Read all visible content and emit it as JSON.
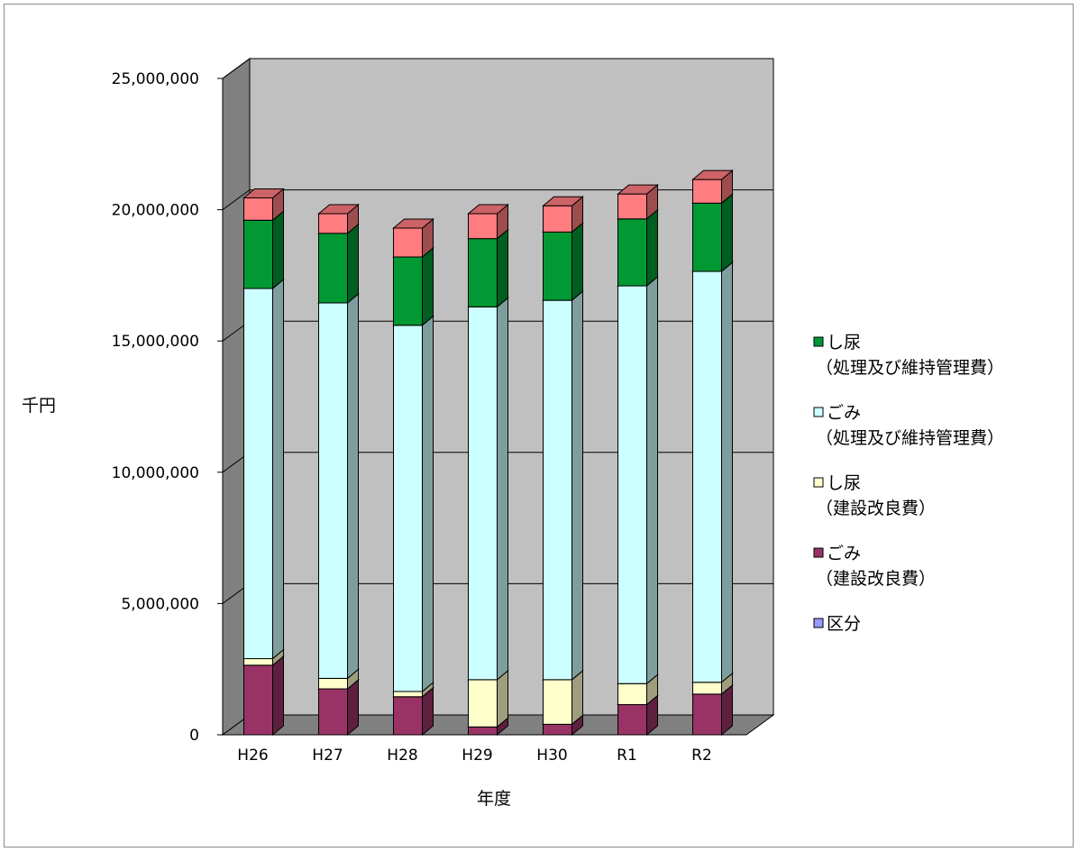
{
  "chart_data": {
    "type": "bar",
    "stacked": true,
    "three_d": true,
    "title": "",
    "xlabel": "年度",
    "ylabel": "千円",
    "ylim": [
      0,
      25000000
    ],
    "y_ticks": [
      0,
      5000000,
      10000000,
      15000000,
      20000000,
      25000000
    ],
    "y_tick_labels": [
      "0",
      "5,000,000",
      "10,000,000",
      "15,000,000",
      "20,000,000",
      "25,000,000"
    ],
    "grid": true,
    "legend_position": "right",
    "categories": [
      "H26",
      "H27",
      "H28",
      "H29",
      "H30",
      "R1",
      "R2"
    ],
    "series": [
      {
        "name": "区分",
        "color": "#9999ff",
        "values": [
          0,
          0,
          0,
          0,
          0,
          0,
          0
        ]
      },
      {
        "name": "ごみ\n（建設改良費）",
        "color": "#993366",
        "values": [
          2650000,
          1750000,
          1450000,
          300000,
          400000,
          1150000,
          1550000
        ]
      },
      {
        "name": "し尿\n（建設改良費）",
        "color": "#ffffcc",
        "values": [
          250000,
          400000,
          200000,
          1800000,
          1700000,
          800000,
          450000
        ]
      },
      {
        "name": "ごみ\n（処理及び維持管理費）",
        "color": "#ccffff",
        "values": [
          14100000,
          14300000,
          13950000,
          14200000,
          14450000,
          15150000,
          15650000
        ]
      },
      {
        "name": "し尿\n（処理及び維持管理費）",
        "color": "#009933",
        "values": [
          2600000,
          2650000,
          2600000,
          2600000,
          2600000,
          2550000,
          2600000
        ]
      },
      {
        "name": "",
        "color": "#ff7c80",
        "values": [
          850000,
          750000,
          1100000,
          950000,
          1000000,
          950000,
          900000
        ]
      }
    ],
    "legend_order": [
      4,
      3,
      2,
      1,
      0
    ]
  }
}
